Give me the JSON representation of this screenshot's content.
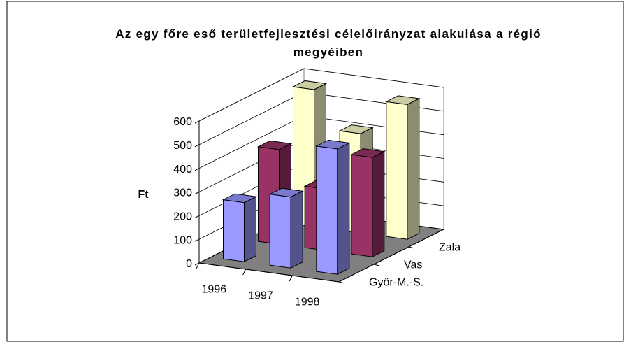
{
  "chart_data": {
    "type": "bar3d",
    "title": "Az egy főre eső területfejlesztési célelőirányzat alakulása a régió megyéiben",
    "y_label": "Ft",
    "categories": [
      "1996",
      "1997",
      "1998"
    ],
    "series": [
      {
        "name": "Győr-M.-S.",
        "color": "#9999ff",
        "values": [
          250,
          300,
          530
        ]
      },
      {
        "name": "Vas",
        "color": "#993366",
        "values": [
          400,
          260,
          420
        ]
      },
      {
        "name": "Zala",
        "color": "#ffffcc",
        "values": [
          580,
          420,
          570
        ]
      }
    ],
    "ylim": [
      0,
      600
    ],
    "yticks": [
      0,
      100,
      200,
      300,
      400,
      500,
      600
    ],
    "grid": true
  }
}
